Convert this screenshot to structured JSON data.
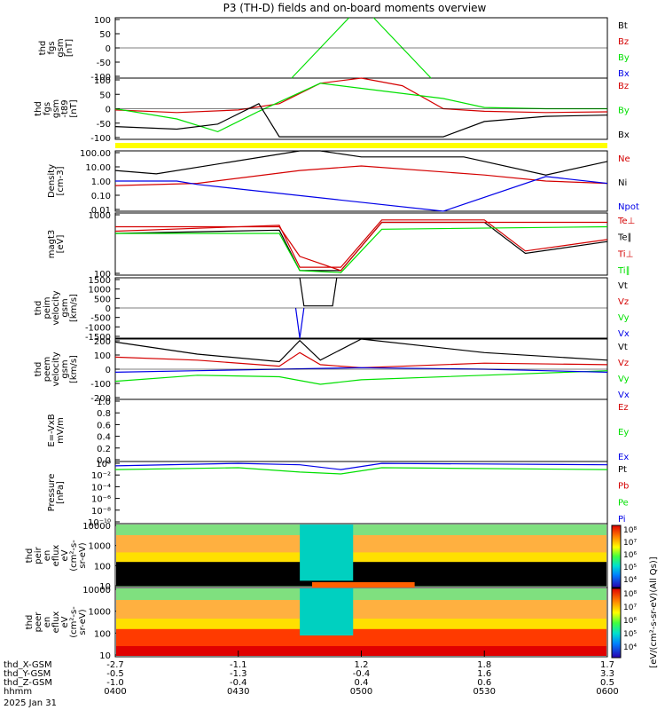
{
  "title": "P3 (TH-D) fields and on-board moments overview",
  "date_label": "2025 Jan 31",
  "colors": {
    "black": "#000000",
    "red": "#d40000",
    "green": "#00e000",
    "blue": "#0000e8",
    "yellow": "#ffff00"
  },
  "xaxis": {
    "rows": [
      {
        "label": "thd_X-GSM",
        "values": [
          "-2.7",
          "-1.1",
          "1.2",
          "1.8",
          "1.7"
        ]
      },
      {
        "label": "thd_Y-GSM",
        "values": [
          "-0.5",
          "-1.3",
          "-0.4",
          "1.6",
          "3.3"
        ]
      },
      {
        "label": "thd_Z-GSM",
        "values": [
          "-1.0",
          "-0.4",
          "0.4",
          "0.6",
          "0.5"
        ]
      },
      {
        "label": "hhmm",
        "values": [
          "0400",
          "0430",
          "0500",
          "0530",
          "0600"
        ]
      }
    ]
  },
  "panels": [
    {
      "id": "fgs-gsm",
      "ylabel": [
        "thd",
        "fgs",
        "gsm",
        "[nT]"
      ],
      "ticks": [
        "100",
        "50",
        "0",
        "-50",
        "-100"
      ],
      "legend": [
        {
          "text": "Bt",
          "color": "black"
        },
        {
          "text": "Bz",
          "color": "red"
        },
        {
          "text": "By",
          "color": "green"
        },
        {
          "text": "Bx",
          "color": "blue"
        }
      ]
    },
    {
      "id": "fgs-gsm-t89",
      "ylabel": [
        "thd",
        "fgs",
        "gsm",
        "-t89",
        "[nT]"
      ],
      "ticks": [
        "100",
        "50",
        "0",
        "-50",
        "-100"
      ],
      "legend": [
        {
          "text": "Bz",
          "color": "red"
        },
        {
          "text": "By",
          "color": "green"
        },
        {
          "text": "Bx",
          "color": "black"
        }
      ]
    },
    {
      "id": "density",
      "ylabel": [
        "Density",
        "[cm-3]"
      ],
      "ticks": [
        "100.00",
        "10.00",
        "1.00",
        "0.10",
        "0.01"
      ],
      "legend": [
        {
          "text": "Ne",
          "color": "red"
        },
        {
          "text": "Ni",
          "color": "black"
        },
        {
          "text": "Npot",
          "color": "blue"
        }
      ]
    },
    {
      "id": "temperature",
      "ylabel": [
        "magt3",
        "[eV]"
      ],
      "ticks": [
        "1000",
        "100"
      ],
      "legend": [
        {
          "text": "Te⊥",
          "color": "red"
        },
        {
          "text": "Te∥",
          "color": "black"
        },
        {
          "text": "Ti⊥",
          "color": "red"
        },
        {
          "text": "Ti∥",
          "color": "green"
        }
      ]
    },
    {
      "id": "peim-velocity",
      "ylabel": [
        "thd",
        "peim",
        "velocity",
        "gsm",
        "[km/s]"
      ],
      "ticks": [
        "1500",
        "1000",
        "500",
        "0",
        "-500",
        "-1000",
        "-1500"
      ],
      "legend": [
        {
          "text": "Vt",
          "color": "black"
        },
        {
          "text": "Vz",
          "color": "red"
        },
        {
          "text": "Vy",
          "color": "green"
        },
        {
          "text": "Vx",
          "color": "blue"
        }
      ]
    },
    {
      "id": "peem-velocity",
      "ylabel": [
        "thd",
        "peem",
        "velocity",
        "gsm",
        "[km/s]"
      ],
      "ticks": [
        "200",
        "100",
        "0",
        "-100",
        "-200"
      ],
      "legend": [
        {
          "text": "Vt",
          "color": "black"
        },
        {
          "text": "Vz",
          "color": "red"
        },
        {
          "text": "Vy",
          "color": "green"
        },
        {
          "text": "Vx",
          "color": "blue"
        }
      ]
    },
    {
      "id": "efield",
      "ylabel": [
        "E=-VxB",
        "mV/m"
      ],
      "ticks": [
        "1.0",
        "0.8",
        "0.6",
        "0.4",
        "0.2",
        "0.0"
      ],
      "legend": [
        {
          "text": "Ez",
          "color": "red"
        },
        {
          "text": "Ey",
          "color": "green"
        },
        {
          "text": "Ex",
          "color": "blue"
        }
      ]
    },
    {
      "id": "pressure",
      "ylabel": [
        "Pressure",
        "[nPa]"
      ],
      "ticks": [
        "10⁰",
        "10⁻²",
        "10⁻⁴",
        "10⁻⁶",
        "10⁻⁸",
        "10⁻¹⁰"
      ],
      "legend": [
        {
          "text": "Pt",
          "color": "black"
        },
        {
          "text": "Pb",
          "color": "red"
        },
        {
          "text": "Pe",
          "color": "green"
        },
        {
          "text": "Pi",
          "color": "blue"
        }
      ]
    },
    {
      "id": "peir-spec",
      "ylabel": [
        "thd",
        "peir",
        "en",
        "eflux",
        "eV",
        "(cm²-s-",
        "sr-eV)"
      ],
      "ticks": [
        "10000",
        "1000",
        "100",
        "10"
      ],
      "legend": []
    },
    {
      "id": "peer-spec",
      "ylabel": [
        "thd",
        "peer",
        "en",
        "eflux",
        "eV",
        "(cm²-s-",
        "sr-eV)"
      ],
      "ticks": [
        "10000",
        "1000",
        "100",
        "10"
      ],
      "legend": []
    }
  ],
  "colorbar": {
    "label": "[eV/(cm²-s-sr-eV)(All Qs)]",
    "ticks_top": [
      "10⁸",
      "10⁷",
      "10⁶",
      "10⁵",
      "10⁴"
    ],
    "ticks_bottom": [
      "10⁸",
      "10⁷",
      "10⁶",
      "10⁵",
      "10⁴"
    ]
  },
  "chart_data": {
    "type": "line",
    "title": "P3 (TH-D) fields and on-board moments overview",
    "x_time_hhmm": [
      "0400",
      "0430",
      "0500",
      "0530",
      "0600"
    ],
    "panels": [
      {
        "name": "fgs gsm",
        "unit": "nT",
        "ylim": [
          -100,
          100
        ],
        "series": [
          {
            "name": "By",
            "x": [
              "0443",
              "0457",
              "0500",
              "0503",
              "0517"
            ],
            "values": [
              -100,
              100,
              null,
              100,
              -100
            ]
          }
        ]
      },
      {
        "name": "fgs gsm -t89",
        "unit": "nT",
        "ylim": [
          -120,
          120
        ],
        "series": [
          {
            "name": "Bz",
            "x": [
              "0400",
              "0415",
              "0430",
              "0440",
              "0450",
              "0500",
              "0510",
              "0520",
              "0530",
              "0545",
              "0600"
            ],
            "values": [
              -5,
              -15,
              -5,
              20,
              100,
              120,
              90,
              0,
              -10,
              -15,
              -12
            ]
          },
          {
            "name": "By",
            "x": [
              "0400",
              "0415",
              "0425",
              "0435",
              "0450",
              "0520",
              "0530",
              "0545",
              "0600"
            ],
            "values": [
              0,
              -40,
              -90,
              -10,
              100,
              40,
              5,
              0,
              0
            ]
          },
          {
            "name": "Bx",
            "x": [
              "0400",
              "0415",
              "0425",
              "0435",
              "0440",
              "0520",
              "0530",
              "0545",
              "0600"
            ],
            "values": [
              -70,
              -80,
              -60,
              20,
              -110,
              -110,
              -50,
              -30,
              -25
            ]
          }
        ]
      },
      {
        "name": "Density",
        "unit": "cm-3",
        "ylim": [
          0.01,
          100
        ],
        "scale": "log",
        "series": [
          {
            "name": "Ne",
            "x": [
              "0400",
              "0420",
              "0445",
              "0500",
              "0530",
              "0545",
              "0600"
            ],
            "values": [
              0.5,
              0.7,
              5,
              10,
              2.5,
              1.0,
              0.7
            ]
          },
          {
            "name": "Ni",
            "x": [
              "0400",
              "0410",
              "0445",
              "0450",
              "0500",
              "0525",
              "0545",
              "0600"
            ],
            "values": [
              5,
              3,
              100,
              100,
              40,
              40,
              2.5,
              20
            ]
          },
          {
            "name": "Npot",
            "x": [
              "0400",
              "0415",
              "0420",
              "0520",
              "0545",
              "0600"
            ],
            "values": [
              1.0,
              1.0,
              0.6,
              0.005,
              2,
              0.7
            ]
          }
        ]
      },
      {
        "name": "magt3",
        "unit": "eV",
        "ylim": [
          50,
          5000
        ],
        "scale": "log",
        "series": [
          {
            "name": "Te⊥",
            "x": [
              "0400",
              "0440",
              "0445",
              "0455",
              "0505",
              "0530",
              "0540",
              "0600"
            ],
            "values": [
              1300,
              2000,
              90,
              90,
              3000,
              3000,
              300,
              700
            ]
          },
          {
            "name": "Te∥",
            "x": [
              "0400",
              "0440",
              "0445",
              "0455",
              "0505",
              "0530",
              "0540",
              "0600"
            ],
            "values": [
              1100,
              1400,
              70,
              70,
              2500,
              2500,
              250,
              600
            ]
          },
          {
            "name": "Ti⊥",
            "x": [
              "0400",
              "0440",
              "0445",
              "0455",
              "0505",
              "0600"
            ],
            "values": [
              1800,
              1800,
              200,
              70,
              2500,
              2500
            ]
          },
          {
            "name": "Ti∥",
            "x": [
              "0400",
              "0440",
              "0445",
              "0455",
              "0505",
              "0600"
            ],
            "values": [
              1100,
              1100,
              70,
              60,
              1500,
              1800
            ]
          }
        ]
      },
      {
        "name": "peim velocity gsm",
        "unit": "km/s",
        "ylim": [
          -1500,
          1500
        ],
        "series": [
          {
            "name": "Vt",
            "x": [
              "0445",
              "0446",
              "0453",
              "0454"
            ],
            "values": [
              1500,
              100,
              100,
              1500
            ]
          },
          {
            "name": "Vx",
            "x": [
              "0444",
              "0445",
              "0446"
            ],
            "values": [
              0,
              -1500,
              0
            ]
          }
        ]
      },
      {
        "name": "peem velocity gsm",
        "unit": "km/s",
        "ylim": [
          -200,
          200
        ],
        "series": [
          {
            "name": "Vt",
            "x": [
              "0400",
              "0420",
              "0440",
              "0445",
              "0450",
              "0500",
              "0530",
              "0600"
            ],
            "values": [
              180,
              100,
              50,
              190,
              60,
              200,
              110,
              60
            ]
          },
          {
            "name": "Vz",
            "x": [
              "0400",
              "0420",
              "0440",
              "0445",
              "0450",
              "0500",
              "0530",
              "0600"
            ],
            "values": [
              80,
              60,
              20,
              110,
              30,
              10,
              40,
              30
            ]
          },
          {
            "name": "Vy",
            "x": [
              "0400",
              "0420",
              "0440",
              "0450",
              "0500",
              "0530",
              "0600"
            ],
            "values": [
              -80,
              -40,
              -50,
              -100,
              -70,
              -40,
              -10
            ]
          },
          {
            "name": "Vx",
            "x": [
              "0400",
              "0420",
              "0440",
              "0500",
              "0530",
              "0600"
            ],
            "values": [
              -20,
              -10,
              0,
              10,
              0,
              -20
            ]
          }
        ]
      },
      {
        "name": "E=-VxB",
        "unit": "mV/m",
        "ylim": [
          0,
          1
        ],
        "series": []
      },
      {
        "name": "Pressure",
        "unit": "nPa",
        "ylim": [
          1e-10,
          1
        ],
        "scale": "log",
        "series": [
          {
            "name": "Pi",
            "x": [
              "0400",
              "0430",
              "0445",
              "0455",
              "0505",
              "0600"
            ],
            "values": [
              0.2,
              0.5,
              0.3,
              0.05,
              0.5,
              0.3
            ]
          },
          {
            "name": "Pe",
            "x": [
              "0400",
              "0430",
              "0445",
              "0455",
              "0505",
              "0600"
            ],
            "values": [
              0.05,
              0.1,
              0.02,
              0.01,
              0.1,
              0.05
            ]
          }
        ]
      },
      {
        "name": "peir en eflux",
        "type": "heatmap",
        "unit": "eV/(cm²-s-sr-eV)",
        "ylim": [
          5,
          30000
        ],
        "scale": "log"
      },
      {
        "name": "peer en eflux",
        "type": "heatmap",
        "unit": "eV/(cm²-s-sr-eV)",
        "ylim": [
          5,
          30000
        ],
        "scale": "log"
      }
    ]
  }
}
